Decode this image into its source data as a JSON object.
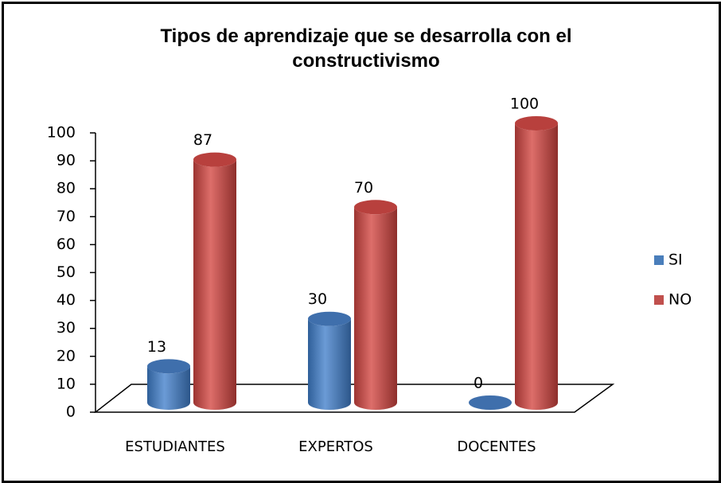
{
  "chart_data": {
    "type": "bar",
    "title": "Tipos de aprendizaje que se desarrolla con el constructivismo",
    "categories": [
      "ESTUDIANTES",
      "EXPERTOS",
      "DOCENTES"
    ],
    "series": [
      {
        "name": "SI",
        "color": "#4a7ebb",
        "values": [
          13,
          30,
          0
        ]
      },
      {
        "name": "NO",
        "color": "#c0504d",
        "values": [
          87,
          70,
          100
        ]
      }
    ],
    "ylim": [
      0,
      100
    ],
    "yticks": [
      0,
      10,
      20,
      30,
      40,
      50,
      60,
      70,
      80,
      90,
      100
    ],
    "legend": "right"
  }
}
